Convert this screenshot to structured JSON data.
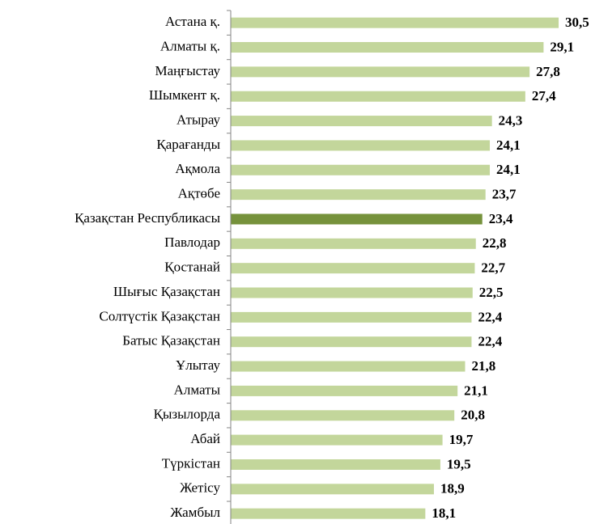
{
  "chart_data": {
    "type": "bar",
    "orientation": "horizontal",
    "categories": [
      "Астана қ.",
      "Алматы қ.",
      "Маңғыстау",
      "Шымкент қ.",
      "Атырау",
      "Қарағанды",
      "Ақмола",
      "Ақтөбе",
      "Қазақстан Республикасы",
      "Павлодар",
      "Қостанай",
      "Шығыс Қазақстан",
      "Солтүстік Қазақстан",
      "Батыс Қазақстан",
      "Ұлытау",
      "Алматы",
      "Қызылорда",
      "Абай",
      "Түркістан",
      "Жетісу",
      "Жамбыл"
    ],
    "values": [
      30.5,
      29.1,
      27.8,
      27.4,
      24.3,
      24.1,
      24.1,
      23.7,
      23.4,
      22.8,
      22.7,
      22.5,
      22.4,
      22.4,
      21.8,
      21.1,
      20.8,
      19.7,
      19.5,
      18.9,
      18.1
    ],
    "value_labels": [
      "30,5",
      "29,1",
      "27,8",
      "27,4",
      "24,3",
      "24,1",
      "24,1",
      "23,7",
      "23,4",
      "22,8",
      "22,7",
      "22,5",
      "22,4",
      "22,4",
      "21,8",
      "21,1",
      "20,8",
      "19,7",
      "19,5",
      "18,9",
      "18,1"
    ],
    "colors": [
      "#c3d69b",
      "#c3d69b",
      "#c3d69b",
      "#c3d69b",
      "#c3d69b",
      "#c3d69b",
      "#c3d69b",
      "#c3d69b",
      "#76923c",
      "#c3d69b",
      "#c3d69b",
      "#c3d69b",
      "#c3d69b",
      "#c3d69b",
      "#c3d69b",
      "#c3d69b",
      "#c3d69b",
      "#c3d69b",
      "#c3d69b",
      "#c3d69b",
      "#c3d69b"
    ]
  }
}
